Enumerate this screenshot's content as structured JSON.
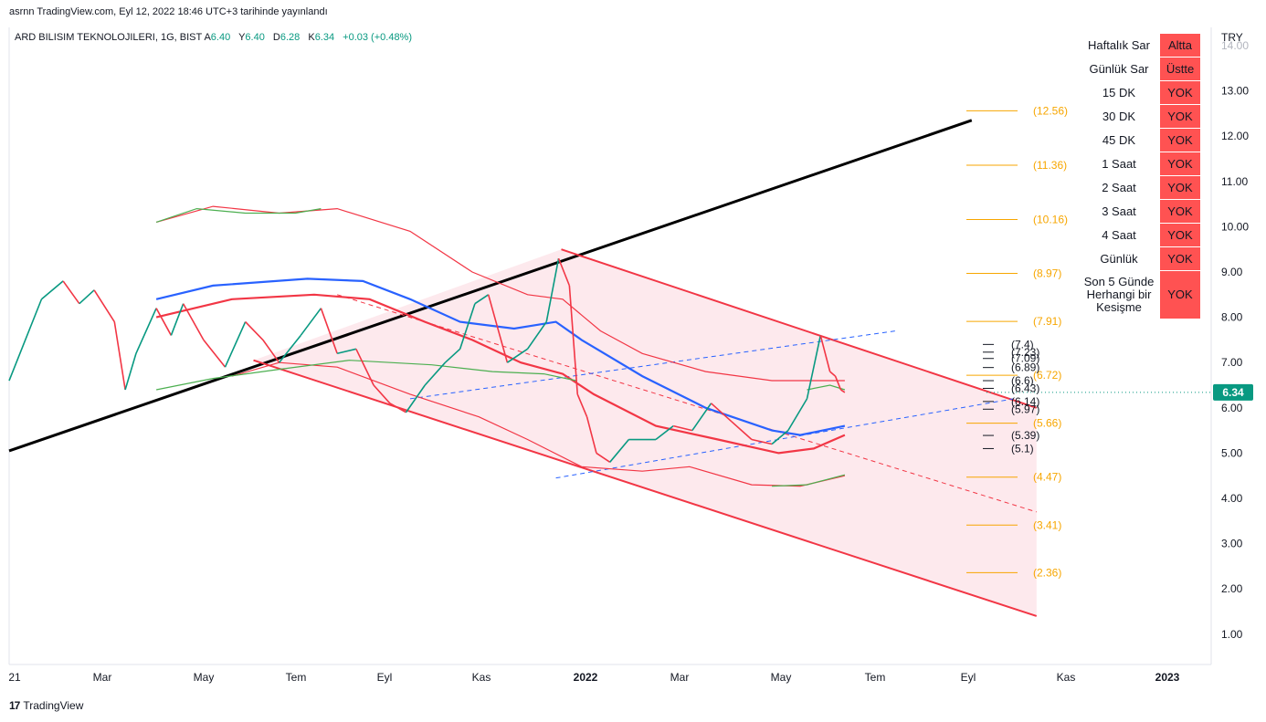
{
  "header": {
    "published": "asrnn TradingView.com, Eyl 12, 2022 18:46 UTC+3 tarihinde yayınlandı",
    "symbol": "ARD BILISIM TEKNOLOJILERI, 1G, BIST",
    "ohlc": [
      {
        "label": "A",
        "value": "6.40"
      },
      {
        "label": "Y",
        "value": "6.40"
      },
      {
        "label": "D",
        "value": "6.28"
      },
      {
        "label": "K",
        "value": "6.34"
      }
    ],
    "change": "+0.03 (+0.48%)"
  },
  "chart_data": {
    "type": "line",
    "currency": "TRY",
    "y_axis_ticks": [
      "13.00",
      "12.00",
      "11.00",
      "10.00",
      "9.00",
      "8.00",
      "7.00",
      "6.00",
      "5.00",
      "4.00",
      "3.00",
      "2.00",
      "1.00"
    ],
    "y_axis_partial_tick": "14.00",
    "ylim": [
      0.3,
      14.0
    ],
    "x_axis_ticks": [
      {
        "label": "21",
        "bold": false
      },
      {
        "label": "Mar",
        "bold": false
      },
      {
        "label": "May",
        "bold": false
      },
      {
        "label": "Tem",
        "bold": false
      },
      {
        "label": "Eyl",
        "bold": false
      },
      {
        "label": "Kas",
        "bold": false
      },
      {
        "label": "2022",
        "bold": true
      },
      {
        "label": "Mar",
        "bold": false
      },
      {
        "label": "May",
        "bold": false
      },
      {
        "label": "Tem",
        "bold": false
      },
      {
        "label": "Eyl",
        "bold": false
      },
      {
        "label": "Kas",
        "bold": false
      },
      {
        "label": "2023",
        "bold": true
      }
    ],
    "last_price": "6.34",
    "price_path": [
      [
        "2021-01-01",
        6.6
      ],
      [
        "2021-01-25",
        8.4
      ],
      [
        "2021-02-10",
        8.8
      ],
      [
        "2021-02-22",
        8.3
      ],
      [
        "2021-03-05",
        8.6
      ],
      [
        "2021-03-20",
        7.9
      ],
      [
        "2021-03-28",
        6.4
      ],
      [
        "2021-04-05",
        7.2
      ],
      [
        "2021-04-20",
        8.2
      ],
      [
        "2021-05-01",
        7.6
      ],
      [
        "2021-05-10",
        8.3
      ],
      [
        "2021-05-25",
        7.5
      ],
      [
        "2021-06-10",
        6.9
      ],
      [
        "2021-06-25",
        7.9
      ],
      [
        "2021-07-08",
        7.5
      ],
      [
        "2021-07-20",
        7.0
      ],
      [
        "2021-08-05",
        7.6
      ],
      [
        "2021-08-20",
        8.2
      ],
      [
        "2021-09-01",
        7.2
      ],
      [
        "2021-09-15",
        7.3
      ],
      [
        "2021-09-28",
        6.5
      ],
      [
        "2021-10-10",
        6.1
      ],
      [
        "2021-10-22",
        5.9
      ],
      [
        "2021-11-05",
        6.5
      ],
      [
        "2021-11-20",
        7.0
      ],
      [
        "2021-12-01",
        7.3
      ],
      [
        "2021-12-12",
        8.3
      ],
      [
        "2021-12-22",
        8.5
      ],
      [
        "2022-01-05",
        7.0
      ],
      [
        "2022-01-20",
        7.3
      ],
      [
        "2022-02-03",
        7.9
      ],
      [
        "2022-02-12",
        9.3
      ],
      [
        "2022-02-20",
        8.7
      ],
      [
        "2022-02-26",
        6.3
      ],
      [
        "2022-03-05",
        5.8
      ],
      [
        "2022-03-12",
        5.0
      ],
      [
        "2022-03-22",
        4.8
      ],
      [
        "2022-04-05",
        5.3
      ],
      [
        "2022-04-25",
        5.3
      ],
      [
        "2022-05-08",
        5.6
      ],
      [
        "2022-05-22",
        5.5
      ],
      [
        "2022-06-05",
        6.1
      ],
      [
        "2022-06-20",
        5.7
      ],
      [
        "2022-07-05",
        5.3
      ],
      [
        "2022-07-20",
        5.2
      ],
      [
        "2022-08-01",
        5.5
      ],
      [
        "2022-08-15",
        6.2
      ],
      [
        "2022-08-25",
        7.6
      ],
      [
        "2022-09-01",
        6.8
      ],
      [
        "2022-09-05",
        6.7
      ],
      [
        "2022-09-09",
        6.4
      ],
      [
        "2022-09-12",
        6.34
      ]
    ],
    "series": [
      {
        "color": "#2962ff",
        "points": [
          [
            "2021-04-20",
            8.4
          ],
          [
            "2021-06-01",
            8.7
          ],
          [
            "2021-08-10",
            8.85
          ],
          [
            "2021-09-20",
            8.8
          ],
          [
            "2021-10-25",
            8.4
          ],
          [
            "2021-12-01",
            7.9
          ],
          [
            "2022-01-10",
            7.75
          ],
          [
            "2022-02-10",
            7.9
          ],
          [
            "2022-03-01",
            7.5
          ],
          [
            "2022-04-15",
            6.7
          ],
          [
            "2022-06-01",
            6.0
          ],
          [
            "2022-07-20",
            5.5
          ],
          [
            "2022-08-10",
            5.4
          ],
          [
            "2022-09-12",
            5.6
          ]
        ]
      },
      {
        "color": "#f23645",
        "points": [
          [
            "2021-04-20",
            8.0
          ],
          [
            "2021-06-15",
            8.4
          ],
          [
            "2021-08-15",
            8.5
          ],
          [
            "2021-09-25",
            8.4
          ],
          [
            "2021-11-05",
            7.9
          ],
          [
            "2021-12-10",
            7.5
          ],
          [
            "2022-01-15",
            7.0
          ],
          [
            "2022-02-15",
            6.75
          ],
          [
            "2022-03-10",
            6.3
          ],
          [
            "2022-04-25",
            5.6
          ],
          [
            "2022-06-10",
            5.3
          ],
          [
            "2022-07-25",
            5.0
          ],
          [
            "2022-08-20",
            5.1
          ],
          [
            "2022-09-12",
            5.4
          ]
        ]
      },
      {
        "color": "#f23645",
        "points": [
          [
            "2021-04-20",
            10.1
          ],
          [
            "2021-06-01",
            10.45
          ],
          [
            "2021-07-20",
            10.3
          ],
          [
            "2021-09-01",
            10.4
          ],
          [
            "2021-10-25",
            9.9
          ],
          [
            "2021-12-10",
            9.0
          ],
          [
            "2022-01-20",
            8.5
          ],
          [
            "2022-02-15",
            8.4
          ],
          [
            "2022-03-15",
            7.7
          ],
          [
            "2022-04-15",
            7.2
          ],
          [
            "2022-06-01",
            6.8
          ],
          [
            "2022-07-20",
            6.6
          ],
          [
            "2022-09-12",
            6.6
          ]
        ]
      },
      {
        "color": "#f23645",
        "points": [
          [
            "2021-06-15",
            6.7
          ],
          [
            "2021-07-20",
            7.0
          ],
          [
            "2021-09-01",
            6.9
          ],
          [
            "2021-10-25",
            6.3
          ],
          [
            "2021-12-15",
            5.8
          ],
          [
            "2022-01-20",
            5.3
          ],
          [
            "2022-03-01",
            4.7
          ],
          [
            "2022-04-15",
            4.6
          ],
          [
            "2022-05-20",
            4.7
          ],
          [
            "2022-07-05",
            4.3
          ],
          [
            "2022-08-10",
            4.27
          ],
          [
            "2022-09-12",
            4.5
          ]
        ]
      },
      {
        "color": "#4caf50",
        "points": [
          [
            "2021-04-20",
            6.4
          ],
          [
            "2021-06-01",
            6.65
          ],
          [
            "2021-07-20",
            6.85
          ],
          [
            "2021-09-10",
            7.05
          ],
          [
            "2021-11-10",
            6.95
          ],
          [
            "2021-12-25",
            6.8
          ],
          [
            "2022-02-01",
            6.75
          ],
          [
            "2022-02-25",
            6.6
          ]
        ]
      },
      {
        "color": "#4caf50",
        "points": [
          [
            "2022-08-15",
            6.4
          ],
          [
            "2022-09-01",
            6.5
          ],
          [
            "2022-09-12",
            6.4
          ]
        ]
      },
      {
        "color": "#4caf50",
        "points": [
          [
            "2021-04-20",
            10.1
          ],
          [
            "2021-05-20",
            10.4
          ],
          [
            "2021-06-25",
            10.3
          ],
          [
            "2021-08-01",
            10.3
          ],
          [
            "2021-08-20",
            10.4
          ]
        ]
      },
      {
        "color": "#4caf50",
        "points": [
          [
            "2022-07-20",
            4.27
          ],
          [
            "2022-08-15",
            4.3
          ],
          [
            "2022-09-12",
            4.52
          ]
        ]
      }
    ],
    "fib_levels": [
      "12.56",
      "11.36",
      "10.16",
      "8.97",
      "7.91",
      "6.72",
      "5.66",
      "4.47",
      "3.41",
      "2.36"
    ],
    "fib_values": [
      12.56,
      11.36,
      10.16,
      8.97,
      7.91,
      6.72,
      5.66,
      4.47,
      3.41,
      2.36
    ],
    "pivot_levels": [
      "(7.4)",
      "(7.23)",
      "(7.09)",
      "(6.89)",
      "(6.6)",
      "(6.43)",
      "(6.14)",
      "(5.97)",
      "(5.39)",
      "(5.1)"
    ],
    "pivot_values": [
      7.4,
      7.23,
      7.09,
      6.89,
      6.6,
      6.43,
      6.14,
      5.97,
      5.39,
      5.1
    ],
    "trend_lines": [
      {
        "color": "#000000",
        "style": "solid",
        "from": [
          "2021-01-01",
          5.05
        ],
        "to": [
          "2022-12-15",
          12.35
        ]
      },
      {
        "color": "#f23645",
        "style": "solid",
        "from": [
          "2022-02-14",
          9.5
        ],
        "to": [
          "2023-02-01",
          6.0
        ]
      },
      {
        "color": "#f23645",
        "style": "solid",
        "from": [
          "2021-07-01",
          7.05
        ],
        "to": [
          "2023-02-01",
          1.4
        ]
      },
      {
        "color": "#f23645",
        "style": "dashed",
        "from": [
          "2021-09-01",
          8.5
        ],
        "to": [
          "2023-02-01",
          3.7
        ]
      },
      {
        "color": "#2962ff",
        "style": "dashed",
        "from": [
          "2021-10-25",
          6.2
        ],
        "to": [
          "2022-10-20",
          7.7
        ]
      },
      {
        "color": "#2962ff",
        "style": "dashed",
        "from": [
          "2022-02-10",
          4.45
        ],
        "to": [
          "2023-01-15",
          6.2
        ]
      }
    ],
    "channel_fill": {
      "color": "#fce4e8",
      "polygon": [
        [
          "2022-02-14",
          9.5
        ],
        [
          "2023-02-01",
          6.0
        ],
        [
          "2023-02-01",
          1.4
        ],
        [
          "2021-07-01",
          7.05
        ]
      ]
    }
  },
  "signal_table": {
    "rows": [
      {
        "name": "Haftalık Sar",
        "state": "Altta"
      },
      {
        "name": "Günlük Sar",
        "state": "Üstte"
      },
      {
        "name": "15 DK",
        "state": "YOK"
      },
      {
        "name": "30 DK",
        "state": "YOK"
      },
      {
        "name": "45 DK",
        "state": "YOK"
      },
      {
        "name": "1 Saat",
        "state": "YOK"
      },
      {
        "name": "2 Saat",
        "state": "YOK"
      },
      {
        "name": "3 Saat",
        "state": "YOK"
      },
      {
        "name": "4 Saat",
        "state": "YOK"
      },
      {
        "name": "Günlük",
        "state": "YOK"
      }
    ],
    "last_row": {
      "name": "Son 5 Günde Herhangi bir Kesişme",
      "state": "YOK"
    },
    "state_color": "#ff5252"
  },
  "footer": {
    "brand": "TradingView",
    "brand_mark": "17"
  },
  "colors": {
    "up": "#089981",
    "down": "#f23645",
    "price_tag": "#089981",
    "fib": "#f7a600"
  }
}
